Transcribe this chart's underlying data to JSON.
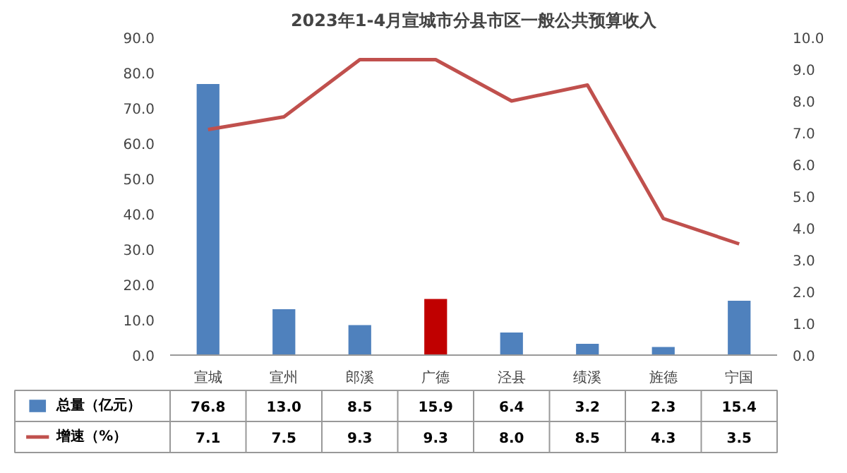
{
  "chart_data": {
    "type": "bar",
    "title": "2023年1-4月宣城市分县市区一般公共预算收入",
    "categories": [
      "宣城",
      "宣州",
      "郎溪",
      "广德",
      "泾县",
      "绩溪",
      "旌德",
      "宁国"
    ],
    "series": [
      {
        "name": "总量（亿元）",
        "color": "#4f81bd",
        "colors": [
          "#4f81bd",
          "#4f81bd",
          "#4f81bd",
          "#c00000",
          "#4f81bd",
          "#4f81bd",
          "#4f81bd",
          "#4f81bd"
        ],
        "values": [
          76.8,
          13.0,
          8.5,
          15.9,
          6.4,
          3.2,
          2.3,
          15.4
        ],
        "value_labels": [
          "76.8",
          "13.0",
          "8.5",
          "15.9",
          "6.4",
          "3.2",
          "2.3",
          "15.4"
        ]
      },
      {
        "name": "增速（%）",
        "type": "line",
        "axis": "y2",
        "color": "#c0504d",
        "values": [
          7.1,
          7.5,
          9.3,
          9.3,
          8.0,
          8.5,
          4.3,
          3.5
        ],
        "value_labels": [
          "7.1",
          "7.5",
          "9.3",
          "9.3",
          "8.0",
          "8.5",
          "4.3",
          "3.5"
        ]
      }
    ],
    "ylim": [
      0,
      90
    ],
    "yticks": [
      {
        "value": 0,
        "label": "0.0"
      },
      {
        "value": 10,
        "label": "10.0"
      },
      {
        "value": 20,
        "label": "20.0"
      },
      {
        "value": 30,
        "label": "30.0"
      },
      {
        "value": 40,
        "label": "40.0"
      },
      {
        "value": 50,
        "label": "50.0"
      },
      {
        "value": 60,
        "label": "60.0"
      },
      {
        "value": 70,
        "label": "70.0"
      },
      {
        "value": 80,
        "label": "80.0"
      },
      {
        "value": 90,
        "label": "90.0"
      }
    ],
    "y2lim": [
      0,
      10
    ],
    "y2ticks": [
      {
        "value": 0,
        "label": "0.0"
      },
      {
        "value": 1,
        "label": "1.0"
      },
      {
        "value": 2,
        "label": "2.0"
      },
      {
        "value": 3,
        "label": "3.0"
      },
      {
        "value": 4,
        "label": "4.0"
      },
      {
        "value": 5,
        "label": "5.0"
      },
      {
        "value": 6,
        "label": "6.0"
      },
      {
        "value": 7,
        "label": "7.0"
      },
      {
        "value": 8,
        "label": "8.0"
      },
      {
        "value": 9,
        "label": "9.0"
      },
      {
        "value": 10,
        "label": "10.0"
      }
    ],
    "legend": "bottom",
    "grid": false
  }
}
